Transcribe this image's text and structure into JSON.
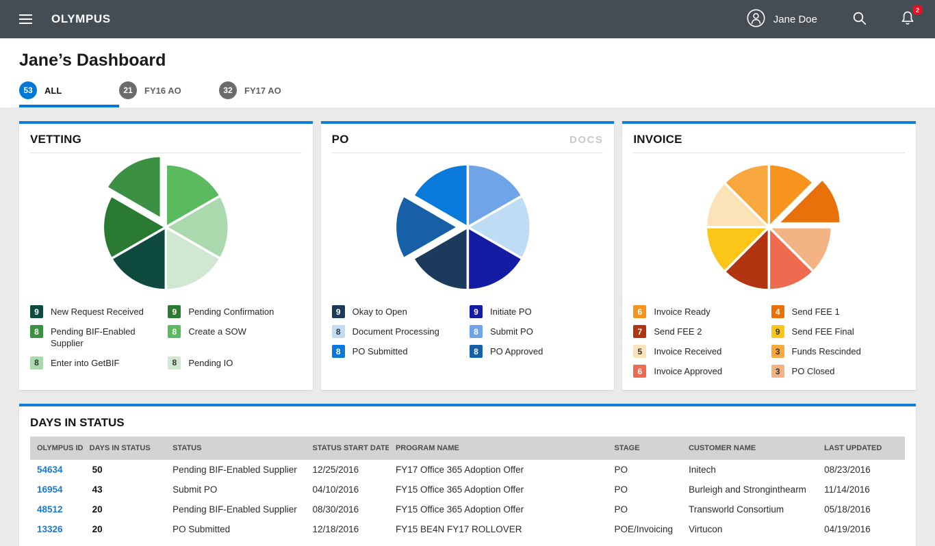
{
  "header": {
    "brand": "OLYMPUS",
    "user_name": "Jane Doe",
    "notification_count": "2"
  },
  "page": {
    "title": "Jane’s Dashboard"
  },
  "tabs": [
    {
      "count": "53",
      "label": "ALL",
      "active": true
    },
    {
      "count": "21",
      "label": "FY16 AO",
      "active": false
    },
    {
      "count": "32",
      "label": "FY17 AO",
      "active": false
    }
  ],
  "theme": {
    "accent_blue": "#0078D7",
    "header_bg": "#454D54",
    "card_top_border": "#0F7CD6",
    "notification_red": "#E81123",
    "page_bg": "#EAEAEA",
    "table_header_bg": "#D3D3D3",
    "link_blue": "#1779D4"
  },
  "cards": {
    "vetting": {
      "title": "VETTING"
    },
    "po": {
      "title": "PO",
      "docs_label": "DOCS"
    },
    "invoice": {
      "title": "INVOICE"
    }
  },
  "chart_data": [
    {
      "type": "pie",
      "title": "VETTING",
      "equal_slices": true,
      "start_angle_deg": -90,
      "clockwise": true,
      "legend_position": "below, two columns",
      "slices": [
        {
          "label": "New Request Received",
          "value": 9,
          "color": "#0E4B3E",
          "exploded": false
        },
        {
          "label": "Pending Confirmation",
          "value": 9,
          "color": "#2B7A31",
          "exploded": false
        },
        {
          "label": "Pending BIF-Enabled Supplier",
          "value": 8,
          "color": "#3C9044",
          "exploded": true
        },
        {
          "label": "Create a SOW",
          "value": 8,
          "color": "#5BB960",
          "exploded": false
        },
        {
          "label": "Enter into GetBIF",
          "value": 8,
          "color": "#ABD9AE",
          "exploded": false
        },
        {
          "label": "Pending IO",
          "value": 8,
          "color": "#D0E8D2",
          "exploded": false
        }
      ],
      "slice_order_clockwise_from_top": [
        3,
        4,
        5,
        0,
        1,
        2
      ]
    },
    {
      "type": "pie",
      "title": "PO",
      "equal_slices": true,
      "start_angle_deg": -90,
      "clockwise": true,
      "legend_position": "below, two columns",
      "slices": [
        {
          "label": "Okay to Open",
          "value": 9,
          "color": "#1B3A5C",
          "exploded": false
        },
        {
          "label": "Initiate PO",
          "value": 9,
          "color": "#151CA4",
          "exploded": false
        },
        {
          "label": "Document Processing",
          "value": 8,
          "color": "#BFDCF5",
          "exploded": false
        },
        {
          "label": "Submit PO",
          "value": 8,
          "color": "#6FA4E8",
          "exploded": false
        },
        {
          "label": "PO Submitted",
          "value": 8,
          "color": "#0979DC",
          "exploded": false
        },
        {
          "label": "PO Approved",
          "value": 8,
          "color": "#175FA6",
          "exploded": true
        }
      ],
      "slice_order_clockwise_from_top": [
        3,
        2,
        1,
        0,
        5,
        4
      ]
    },
    {
      "type": "pie",
      "title": "INVOICE",
      "equal_slices": true,
      "start_angle_deg": -90,
      "clockwise": true,
      "legend_position": "below, two columns",
      "slices": [
        {
          "label": "Invoice Ready",
          "value": 6,
          "color": "#F7941E",
          "exploded": false
        },
        {
          "label": "Send FEE 1",
          "value": 4,
          "color": "#E8710A",
          "exploded": true
        },
        {
          "label": "Send FEE 2",
          "value": 7,
          "color": "#B23511",
          "exploded": false
        },
        {
          "label": "Send FEE Final",
          "value": 9,
          "color": "#FBC617",
          "exploded": false
        },
        {
          "label": "Invoice Received",
          "value": 5,
          "color": "#FCE2B8",
          "exploded": false
        },
        {
          "label": "Funds Rescinded",
          "value": 3,
          "color": "#F8A83E",
          "exploded": false
        },
        {
          "label": "Invoice Approved",
          "value": 6,
          "color": "#EE6A50",
          "exploded": false
        },
        {
          "label": "PO Closed",
          "value": 3,
          "color": "#F3B384",
          "exploded": false
        }
      ],
      "slice_order_clockwise_from_top": [
        0,
        1,
        7,
        6,
        2,
        3,
        4,
        5
      ]
    }
  ],
  "table": {
    "title": "DAYS IN STATUS",
    "columns": [
      "OLYMPUS ID",
      "DAYS IN STATUS",
      "STATUS",
      "STATUS START DATE",
      "PROGRAM NAME",
      "STAGE",
      "CUSTOMER NAME",
      "LAST UPDATED"
    ],
    "rows": [
      {
        "id": "54634",
        "days": "50",
        "status": "Pending BIF-Enabled Supplier",
        "start": "12/25/2016",
        "program": "FY17 Office 365 Adoption Offer",
        "stage": "PO",
        "customer": "Initech",
        "updated": "08/23/2016"
      },
      {
        "id": "16954",
        "days": "43",
        "status": "Submit PO",
        "start": "04/10/2016",
        "program": "FY15 Office 365 Adoption Offer",
        "stage": "PO",
        "customer": "Burleigh and Stronginthearm",
        "updated": "11/14/2016"
      },
      {
        "id": "48512",
        "days": "20",
        "status": "Pending BIF-Enabled Supplier",
        "start": "08/30/2016",
        "program": "FY15 Office 365 Adoption Offer",
        "stage": "PO",
        "customer": "Transworld Consortium",
        "updated": "05/18/2016"
      },
      {
        "id": "13326",
        "days": "20",
        "status": "PO Submitted",
        "start": "12/18/2016",
        "program": "FY15 BE4N FY17 ROLLOVER",
        "stage": "POE/Invoicing",
        "customer": "Virtucon",
        "updated": "04/19/2016"
      }
    ]
  }
}
